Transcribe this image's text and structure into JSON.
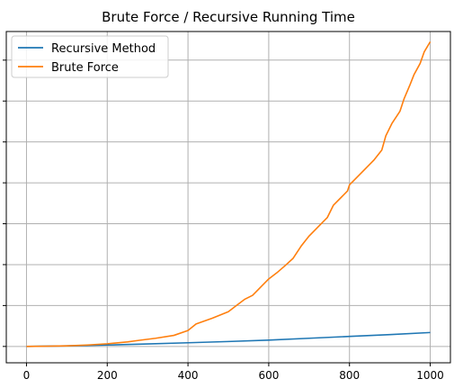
{
  "chart_data": {
    "type": "line",
    "title": "Brute Force / Recursive Running Time",
    "xlabel": "",
    "ylabel": "",
    "xlim": [
      -50,
      1050
    ],
    "ylim": [
      -0.4,
      7.7
    ],
    "grid": true,
    "legend_position": "top-left",
    "x_ticks": [
      0,
      200,
      400,
      600,
      800,
      1000
    ],
    "x_tick_labels": [
      "0",
      "200",
      "400",
      "600",
      "800",
      "1000"
    ],
    "y_ticks": [
      0,
      1,
      2,
      3,
      4,
      5,
      6,
      7
    ],
    "y_tick_labels": [
      "",
      "",
      "",
      "",
      "",
      "",
      "",
      ""
    ],
    "series": [
      {
        "name": "Recursive Method",
        "color": "#1f77b4",
        "x": [
          0,
          100,
          200,
          300,
          400,
          500,
          600,
          700,
          800,
          900,
          1000
        ],
        "y": [
          0,
          0.015,
          0.035,
          0.06,
          0.09,
          0.12,
          0.155,
          0.2,
          0.245,
          0.29,
          0.34
        ]
      },
      {
        "name": "Brute Force",
        "color": "#ff7f0e",
        "x": [
          0,
          50,
          100,
          150,
          200,
          250,
          280,
          320,
          365,
          400,
          420,
          460,
          500,
          520,
          540,
          560,
          580,
          600,
          620,
          640,
          660,
          680,
          700,
          720,
          745,
          760,
          780,
          795,
          800,
          815,
          840,
          860,
          880,
          890,
          905,
          925,
          935,
          950,
          960,
          975,
          985,
          1000
        ],
        "y": [
          0,
          0.005,
          0.015,
          0.035,
          0.065,
          0.11,
          0.15,
          0.2,
          0.27,
          0.39,
          0.55,
          0.69,
          0.85,
          1.0,
          1.15,
          1.25,
          1.45,
          1.65,
          1.8,
          1.97,
          2.15,
          2.45,
          2.7,
          2.9,
          3.15,
          3.45,
          3.65,
          3.8,
          3.95,
          4.1,
          4.35,
          4.55,
          4.8,
          5.15,
          5.45,
          5.75,
          6.05,
          6.4,
          6.65,
          6.92,
          7.2,
          7.45
        ]
      }
    ]
  }
}
